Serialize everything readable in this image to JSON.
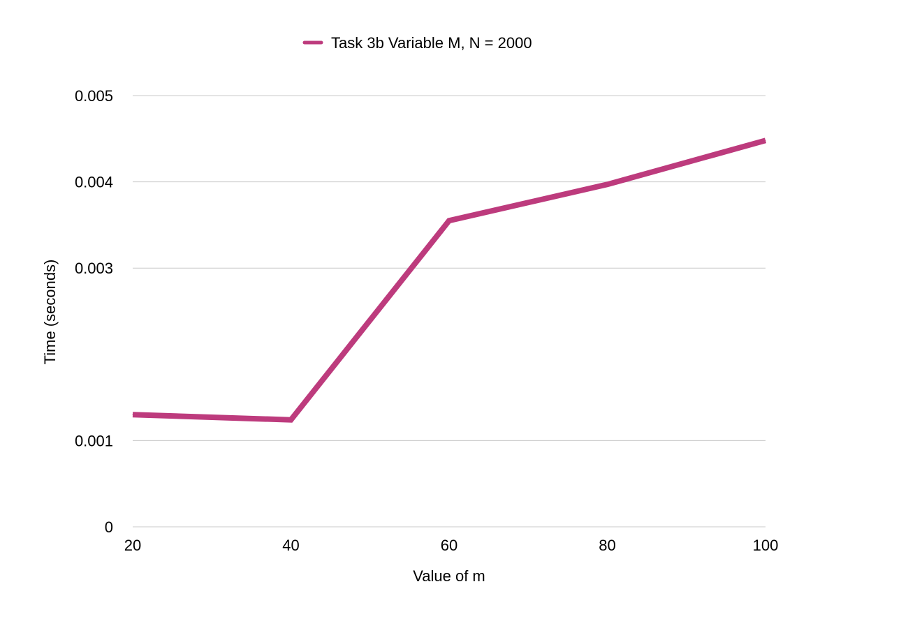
{
  "chart_data": {
    "type": "line",
    "x": [
      20,
      40,
      60,
      80,
      100
    ],
    "series": [
      {
        "name": "Task 3b Variable M, N = 2000",
        "color": "#bd3b7d",
        "values": [
          0.0013,
          0.00124,
          0.00355,
          0.00397,
          0.00448
        ]
      }
    ],
    "xlabel": "Value of m",
    "ylabel": "Time (seconds)",
    "x_ticks": [
      "20",
      "40",
      "60",
      "80",
      "100"
    ],
    "y_ticks": [
      {
        "value": 0,
        "label": "0"
      },
      {
        "value": 0.001,
        "label": "0.001"
      },
      {
        "value": 0.003,
        "label": "0.003"
      },
      {
        "value": 0.004,
        "label": "0.004"
      },
      {
        "value": 0.005,
        "label": "0.005"
      }
    ],
    "xlim": [
      20,
      100
    ],
    "ylim": [
      0,
      0.005
    ],
    "grid": true,
    "legend_position": "top-center"
  }
}
